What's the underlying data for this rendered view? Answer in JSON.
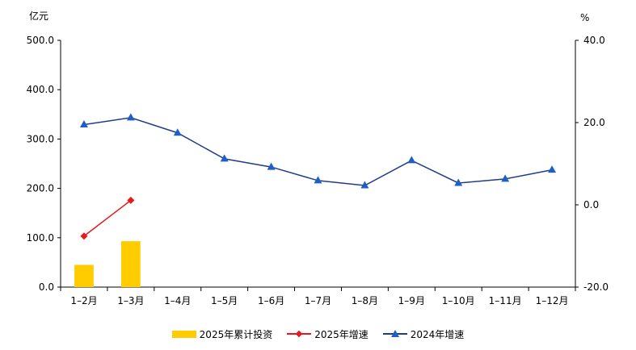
{
  "chart_data": {
    "type": "bar",
    "categories": [
      "1–2月",
      "1–3月",
      "1–4月",
      "1–5月",
      "1–6月",
      "1–7月",
      "1–8月",
      "1–9月",
      "1–10月",
      "1–11月",
      "1–12月"
    ],
    "left_unit": "亿元",
    "right_unit": "%",
    "left_axis": {
      "min": 0,
      "max": 500,
      "ticks": [
        "0.0",
        "100.0",
        "200.0",
        "300.0",
        "400.0",
        "500.0"
      ]
    },
    "right_axis": {
      "min": -20,
      "max": 40,
      "ticks": [
        "-20.0",
        "0.0",
        "20.0",
        "40.0"
      ]
    },
    "series": [
      {
        "name": "2025年累计投资",
        "kind": "bar",
        "axis": "left",
        "color": "#FFCC00",
        "values": [
          45,
          93,
          null,
          null,
          null,
          null,
          null,
          null,
          null,
          null,
          null
        ]
      },
      {
        "name": "2025年增速",
        "kind": "line",
        "axis": "right",
        "color": "#E8191B",
        "marker": "diamond",
        "values": [
          -7.6,
          1.1,
          null,
          null,
          null,
          null,
          null,
          null,
          null,
          null,
          null
        ]
      },
      {
        "name": "2024年增速",
        "kind": "line",
        "axis": "right",
        "color": "#1F3C88",
        "marker_color": "#1F5FC5",
        "marker": "triangle",
        "values": [
          19.5,
          21.2,
          17.5,
          11.2,
          9.2,
          5.9,
          4.7,
          10.8,
          5.3,
          6.3,
          8.5
        ]
      }
    ],
    "legend_position": "bottom",
    "grid": false
  }
}
